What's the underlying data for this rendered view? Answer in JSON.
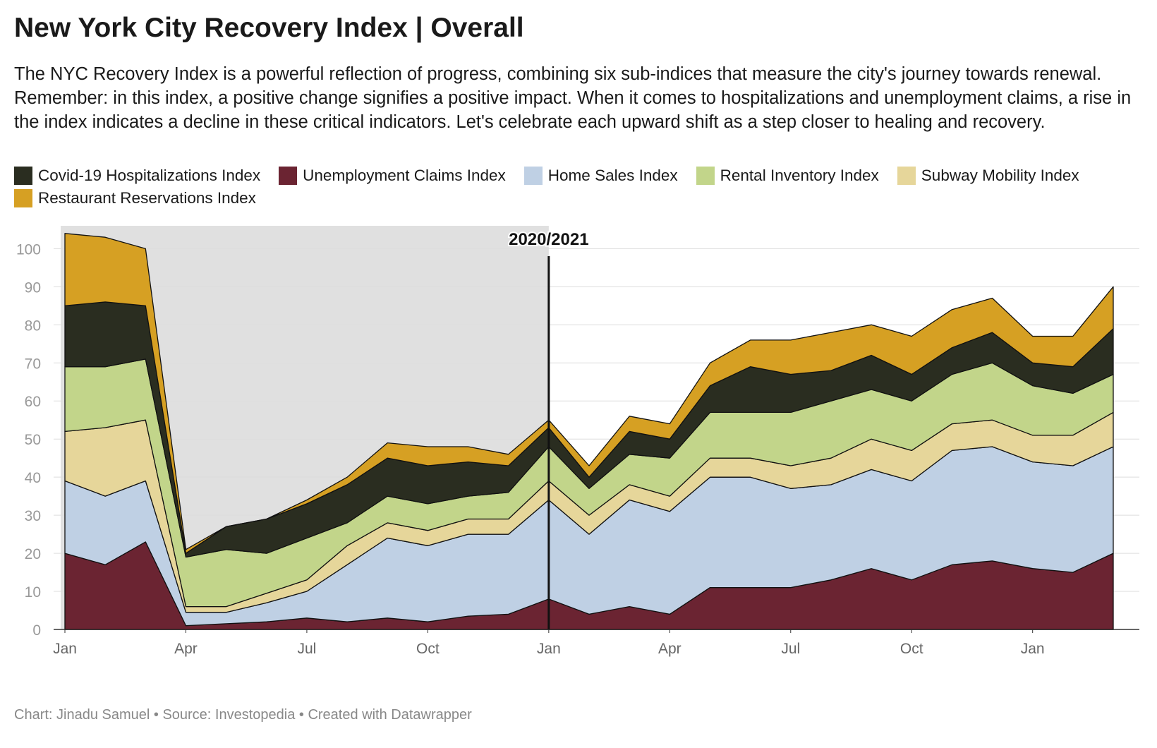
{
  "chart_data": {
    "type": "stacked-area",
    "title": "New York City Recovery Index | Overall",
    "subtitle": "The NYC Recovery Index is a powerful reflection of progress, combining six sub-indices that measure the city's journey towards renewal. Remember: in this index, a positive change signifies a positive impact. When it comes to hospitalizations and unemployment claims, a rise in the index indicates a decline in these critical indicators. Let's celebrate each upward shift as a step closer to healing and recovery.",
    "footer": "Chart: Jinadu Samuel • Source: Investopedia • Created with Datawrapper",
    "annotation": {
      "text": "2020/2021",
      "x": "2021-01"
    },
    "highlight": [
      "2020-01",
      "2021-01"
    ],
    "x": [
      "2020-01",
      "2020-02",
      "2020-03",
      "2020-04",
      "2020-05",
      "2020-06",
      "2020-07",
      "2020-08",
      "2020-09",
      "2020-10",
      "2020-11",
      "2020-12",
      "2021-01",
      "2021-02",
      "2021-03",
      "2021-04",
      "2021-05",
      "2021-06",
      "2021-07",
      "2021-08",
      "2021-09",
      "2021-10",
      "2021-11",
      "2021-12",
      "2022-01",
      "2022-02",
      "2022-03"
    ],
    "xticks": [
      {
        "value": "2020-01",
        "label": "Jan"
      },
      {
        "value": "2020-04",
        "label": "Apr"
      },
      {
        "value": "2020-07",
        "label": "Jul"
      },
      {
        "value": "2020-10",
        "label": "Oct"
      },
      {
        "value": "2021-01",
        "label": "Jan"
      },
      {
        "value": "2021-04",
        "label": "Apr"
      },
      {
        "value": "2021-07",
        "label": "Jul"
      },
      {
        "value": "2021-10",
        "label": "Oct"
      },
      {
        "value": "2022-01",
        "label": "Jan"
      }
    ],
    "ylim": [
      0,
      106
    ],
    "yticks": [
      0,
      10,
      20,
      30,
      40,
      50,
      60,
      70,
      80,
      90,
      100
    ],
    "grid": true,
    "series": [
      {
        "name": "Covid-19 Hospitalizations Index",
        "color": "#2a2d20",
        "values": [
          16,
          17,
          14,
          1,
          6,
          9,
          9,
          10,
          10,
          10,
          9,
          7,
          5,
          3,
          6,
          5,
          7,
          12,
          10,
          8,
          9,
          7,
          7,
          8,
          6,
          7,
          12
        ]
      },
      {
        "name": "Unemployment Claims Index",
        "color": "#6b2432",
        "values": [
          20,
          17,
          23,
          1,
          1.5,
          2,
          3,
          2,
          3,
          2,
          3.5,
          4,
          8,
          4,
          6,
          4,
          11,
          11,
          11,
          13,
          16,
          13,
          17,
          18,
          16,
          15,
          20
        ]
      },
      {
        "name": "Home Sales Index",
        "color": "#bfd0e4",
        "values": [
          19,
          18,
          16,
          3.5,
          3,
          5,
          7,
          15,
          21,
          20,
          21.5,
          21,
          26,
          21,
          28,
          27,
          29,
          29,
          26,
          25,
          26,
          26,
          30,
          30,
          28,
          28,
          28
        ]
      },
      {
        "name": "Rental Inventory Index",
        "color": "#c2d58a",
        "values": [
          17,
          16,
          16,
          13,
          15,
          10.5,
          11,
          6,
          7,
          7,
          6,
          7,
          9,
          7,
          8,
          10,
          12,
          12,
          14,
          15,
          13,
          13,
          13,
          15,
          13,
          11,
          10
        ]
      },
      {
        "name": "Subway Mobility Index",
        "color": "#e6d69a",
        "values": [
          13,
          18,
          16,
          1.5,
          1.5,
          2.5,
          3,
          5,
          4,
          4,
          4,
          4,
          5,
          5,
          4,
          4,
          5,
          5,
          6,
          7,
          8,
          8,
          7,
          7,
          7,
          8,
          9
        ]
      },
      {
        "name": "Restaurant Reservations Index",
        "color": "#d6a023",
        "values": [
          19,
          17,
          15,
          1,
          0,
          0,
          1,
          2,
          4,
          5,
          4,
          3,
          2,
          3,
          4,
          4,
          6,
          7,
          9,
          10,
          8,
          10,
          10,
          9,
          7,
          8,
          11
        ]
      }
    ]
  }
}
